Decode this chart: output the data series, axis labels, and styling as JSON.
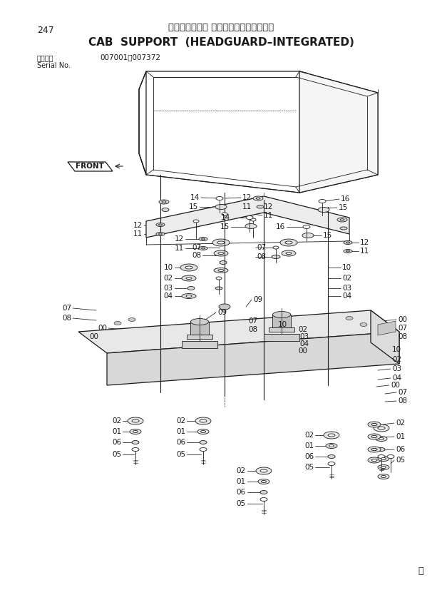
{
  "page_number": "247",
  "title_japanese": "キャブ取付部品 （ヘッドガード一体型）",
  "title_english": "CAB  SUPPORT  (HEADGUARD–INTEGRATED)",
  "serial_label": "適用号機",
  "serial_sub": "Serial No.",
  "serial_range": "007001～007372",
  "page_mark": "Ⓤ",
  "bg": "#ffffff",
  "tc": "#1a1a1a",
  "front_label": "FRONT"
}
